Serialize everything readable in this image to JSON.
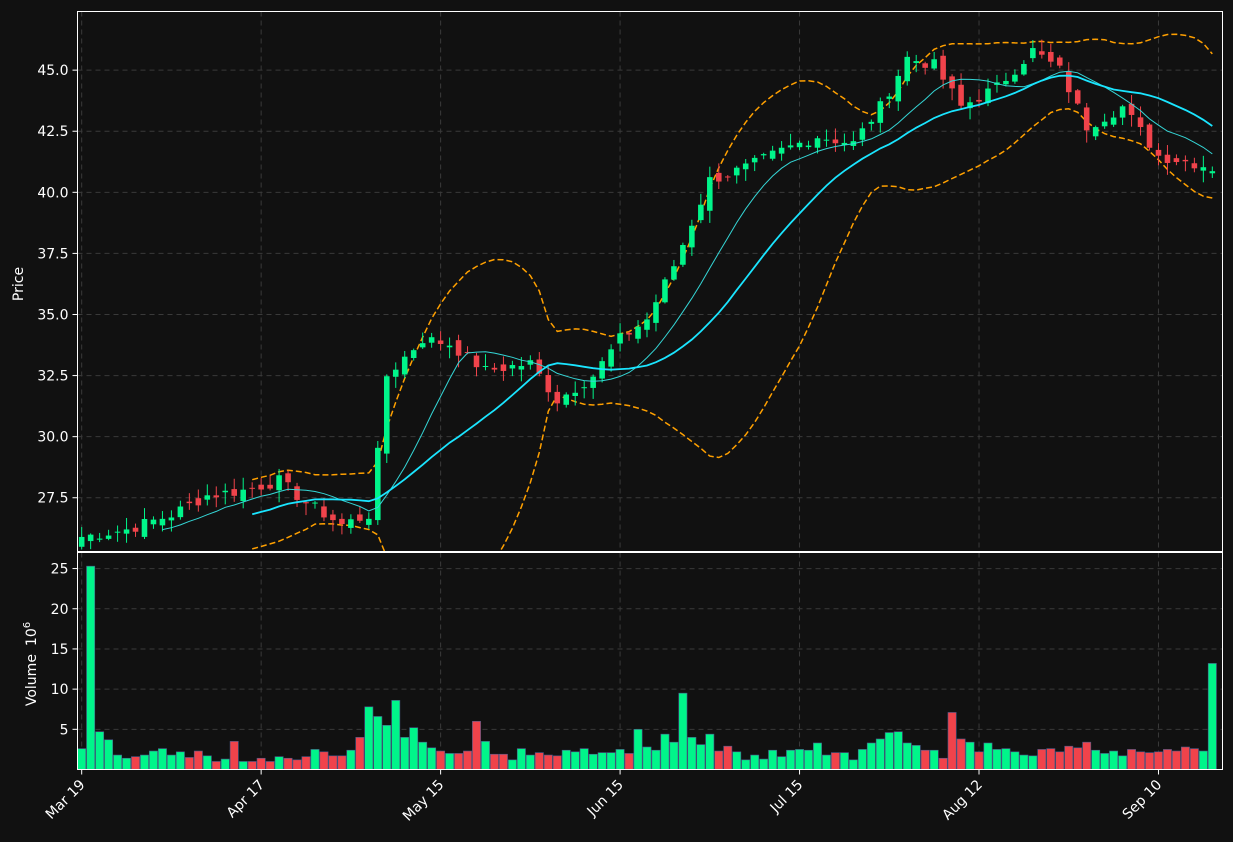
{
  "colors": {
    "background": "#111111",
    "up": "#00f58a",
    "down": "#f0434b",
    "bollinger": "#ffa000",
    "fast_ma": "#35d6d6",
    "slow_ma": "#1ae5ff",
    "grid": "#3a3a3a",
    "axis": "#ffffff"
  },
  "chart_data": [
    {
      "type": "candlestick",
      "ylabel": "Price",
      "ylim": [
        25.3,
        47.4
      ],
      "yticks": [
        "27.5",
        "30.0",
        "32.5",
        "35.0",
        "37.5",
        "40.0",
        "42.5",
        "45.0"
      ],
      "grid": true,
      "overlays": [
        "bollinger-upper",
        "bollinger-lower",
        "fast-ma",
        "slow-ma"
      ],
      "ohlc_series": "approximated daily OHLC generated from key levels (Mar 19 – Sep 16)"
    },
    {
      "type": "bar",
      "ylabel": "Volume",
      "yunit_exponent": "6",
      "ylim": [
        0,
        27
      ],
      "yticks": [
        "5",
        "10",
        "15",
        "20",
        "25"
      ],
      "xtick_labels": [
        "Mar 19",
        "Apr 17",
        "May 15",
        "Jun 15",
        "Jul 15",
        "Aug 12",
        "Sep 10"
      ],
      "xtick_index": [
        0,
        20,
        40,
        60,
        80,
        100,
        120
      ],
      "grid": true
    }
  ],
  "price_keyframes": [
    [
      0,
      25.9
    ],
    [
      5,
      26.2
    ],
    [
      10,
      26.8
    ],
    [
      14,
      27.6
    ],
    [
      18,
      27.8
    ],
    [
      22,
      28.2
    ],
    [
      25,
      27.3
    ],
    [
      29,
      26.4
    ],
    [
      32,
      26.8
    ],
    [
      33,
      29.3
    ],
    [
      34,
      32.5
    ],
    [
      38,
      34.0
    ],
    [
      41,
      33.8
    ],
    [
      45,
      32.7
    ],
    [
      50,
      33.0
    ],
    [
      53,
      31.5
    ],
    [
      57,
      32.5
    ],
    [
      60,
      34.0
    ],
    [
      63,
      34.8
    ],
    [
      66,
      37.0
    ],
    [
      70,
      40.5
    ],
    [
      74,
      41.0
    ],
    [
      78,
      41.7
    ],
    [
      82,
      42.3
    ],
    [
      86,
      42.0
    ],
    [
      89,
      43.5
    ],
    [
      92,
      45.5
    ],
    [
      95,
      45.2
    ],
    [
      98,
      43.5
    ],
    [
      102,
      44.3
    ],
    [
      106,
      45.8
    ],
    [
      109,
      45.0
    ],
    [
      112,
      42.7
    ],
    [
      116,
      43.5
    ],
    [
      120,
      41.5
    ],
    [
      124,
      41.2
    ],
    [
      126,
      41.0
    ]
  ],
  "volume_values": [
    2.6,
    25.3,
    4.7,
    3.7,
    1.8,
    1.4,
    1.6,
    1.8,
    2.3,
    2.6,
    1.8,
    2.2,
    1.5,
    2.3,
    1.7,
    1.0,
    1.3,
    3.5,
    1.0,
    1.0,
    1.4,
    1.0,
    1.6,
    1.4,
    1.2,
    1.6,
    2.5,
    2.2,
    1.7,
    1.7,
    2.4,
    4.0,
    7.8,
    6.6,
    5.5,
    8.6,
    4.0,
    5.2,
    3.4,
    2.7,
    2.3,
    2.0,
    2.0,
    2.3,
    6.0,
    3.5,
    1.9,
    1.9,
    1.2,
    2.6,
    1.8,
    2.1,
    1.8,
    1.7,
    2.4,
    2.2,
    2.6,
    1.9,
    2.1,
    2.1,
    2.5,
    2.0,
    5.0,
    2.8,
    2.4,
    4.4,
    3.4,
    9.5,
    4.0,
    3.1,
    4.4,
    2.3,
    2.9,
    2.2,
    1.2,
    1.8,
    1.3,
    2.4,
    1.6,
    2.4,
    2.5,
    2.4,
    3.3,
    1.8,
    2.1,
    2.1,
    1.2,
    2.5,
    3.3,
    3.8,
    4.6,
    4.7,
    3.3,
    3.0,
    2.4,
    2.4,
    1.4,
    7.1,
    3.8,
    3.4,
    2.2,
    3.3,
    2.5,
    2.6,
    2.2,
    1.8,
    1.7,
    2.5,
    2.6,
    2.2,
    2.9,
    2.7,
    3.4,
    2.4,
    2.0,
    2.3,
    1.7,
    2.5,
    2.2,
    2.1,
    2.2,
    2.5,
    2.3,
    2.8,
    2.6,
    2.3,
    13.2
  ]
}
